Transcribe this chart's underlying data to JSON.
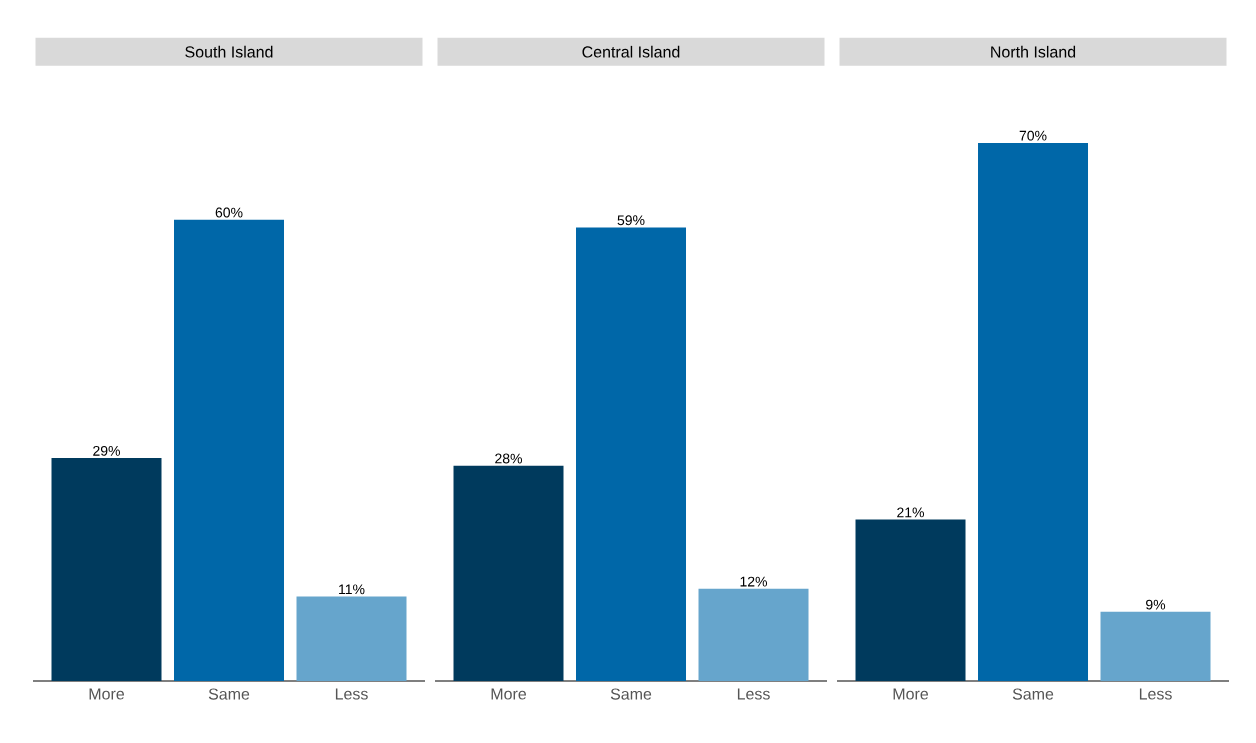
{
  "chart_data": [
    {
      "type": "bar",
      "title": "South Island",
      "categories": [
        "More",
        "Same",
        "Less"
      ],
      "values": [
        29,
        60,
        11
      ],
      "colors": [
        "#003a5d",
        "#0067a8",
        "#66a5cc"
      ],
      "value_labels": [
        "29%",
        "60%",
        "11%"
      ]
    },
    {
      "type": "bar",
      "title": "Central Island",
      "categories": [
        "More",
        "Same",
        "Less"
      ],
      "values": [
        28,
        59,
        12
      ],
      "colors": [
        "#003a5d",
        "#0067a8",
        "#66a5cc"
      ],
      "value_labels": [
        "28%",
        "59%",
        "12%"
      ]
    },
    {
      "type": "bar",
      "title": "North Island",
      "categories": [
        "More",
        "Same",
        "Less"
      ],
      "values": [
        21,
        70,
        9
      ],
      "colors": [
        "#003a5d",
        "#0067a8",
        "#66a5cc"
      ],
      "value_labels": [
        "21%",
        "70%",
        "9%"
      ]
    }
  ]
}
